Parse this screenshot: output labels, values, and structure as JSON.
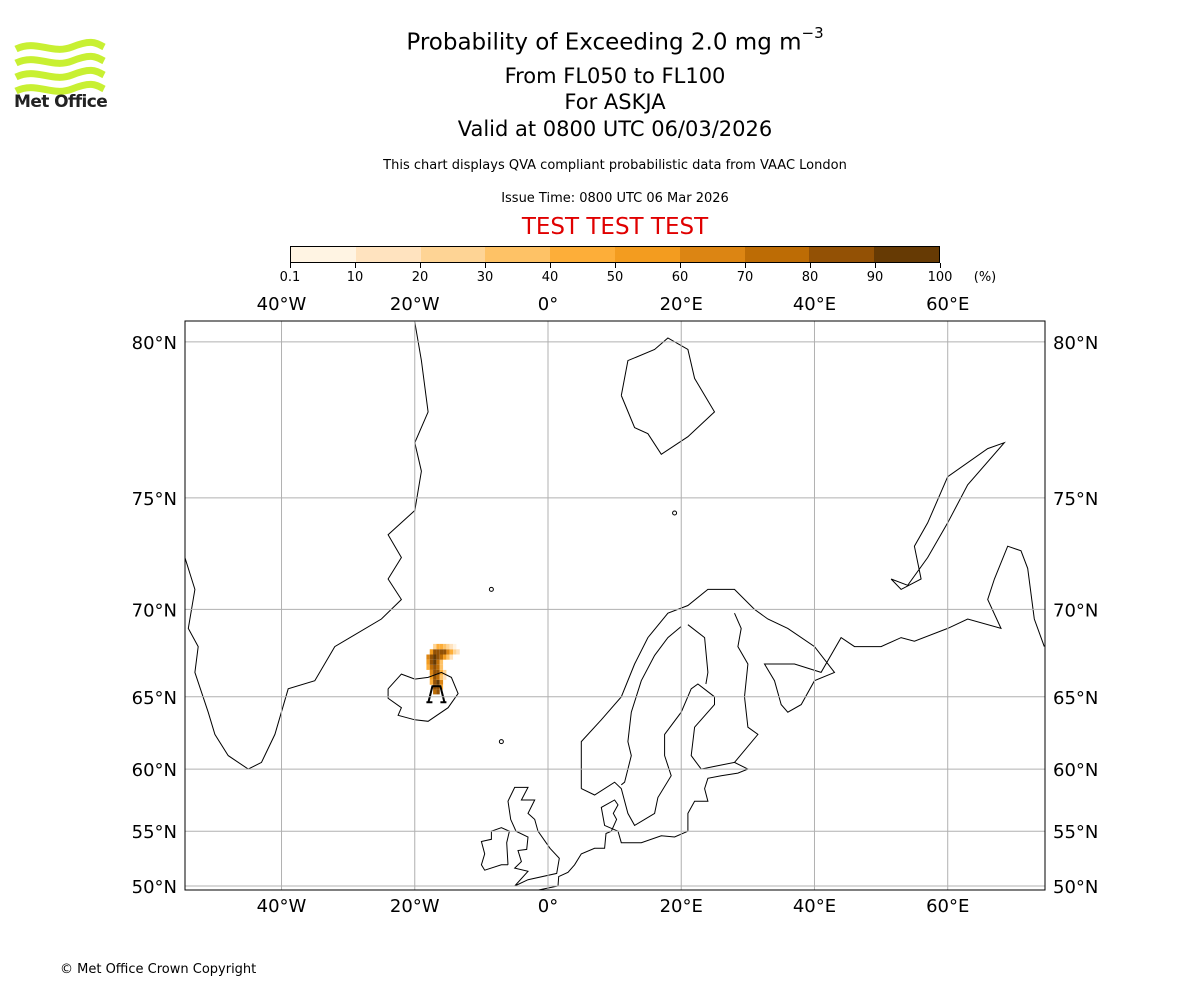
{
  "logo": {
    "text": "Met Office",
    "color": "#c8f032"
  },
  "header": {
    "title": "Probability of Exceeding 2.0 mg m",
    "title_sup": "−3",
    "levels": "From FL050 to FL100",
    "volcano": "For ASKJA",
    "valid": "Valid at 0800 UTC 06/03/2026",
    "description": "This chart displays QVA compliant probabilistic data from VAAC London",
    "issue_time": "Issue Time: 0800 UTC 06 Mar 2026",
    "test_banner": "TEST TEST TEST",
    "test_color": "#e00000"
  },
  "footer": {
    "copyright": "© Met Office Crown Copyright"
  },
  "chart_data": {
    "type": "map",
    "projection": "mercator",
    "extent": {
      "lon": [
        -54.5,
        74.5
      ],
      "lat": [
        49.8,
        80.4
      ]
    },
    "grid": true,
    "lon_ticks": [
      {
        "value": -40,
        "label": "40°W"
      },
      {
        "value": -20,
        "label": "20°W"
      },
      {
        "value": 0,
        "label": "0°"
      },
      {
        "value": 20,
        "label": "20°E"
      },
      {
        "value": 40,
        "label": "40°E"
      },
      {
        "value": 60,
        "label": "60°E"
      }
    ],
    "lat_ticks": [
      {
        "value": 80,
        "label": "80°N"
      },
      {
        "value": 75,
        "label": "75°N"
      },
      {
        "value": 70,
        "label": "70°N"
      },
      {
        "value": 65,
        "label": "65°N"
      },
      {
        "value": 60,
        "label": "60°N"
      },
      {
        "value": 55,
        "label": "55°N"
      },
      {
        "value": 50,
        "label": "50°N"
      }
    ],
    "colorbar": {
      "ticks": [
        "0.1",
        "10",
        "20",
        "30",
        "40",
        "50",
        "60",
        "70",
        "80",
        "90",
        "100"
      ],
      "unit": "(%)",
      "colors": [
        "#fff4e3",
        "#ffe3bf",
        "#fed495",
        "#fec266",
        "#fdae39",
        "#f39c1f",
        "#dc8513",
        "#bd6c05",
        "#935105",
        "#663a04"
      ]
    },
    "volcano": {
      "name": "ASKJA",
      "lon": -16.75,
      "lat": 65.03
    },
    "plume": [
      {
        "lon": -17.0,
        "lat": 65.3,
        "p": 75
      },
      {
        "lon": -16.5,
        "lat": 65.3,
        "p": 85
      },
      {
        "lon": -17.0,
        "lat": 65.6,
        "p": 85
      },
      {
        "lon": -16.5,
        "lat": 65.6,
        "p": 80
      },
      {
        "lon": -16.0,
        "lat": 65.6,
        "p": 45
      },
      {
        "lon": -17.5,
        "lat": 65.9,
        "p": 40
      },
      {
        "lon": -17.0,
        "lat": 65.9,
        "p": 85
      },
      {
        "lon": -16.5,
        "lat": 65.9,
        "p": 90
      },
      {
        "lon": -16.0,
        "lat": 65.9,
        "p": 60
      },
      {
        "lon": -17.5,
        "lat": 66.2,
        "p": 55
      },
      {
        "lon": -17.0,
        "lat": 66.2,
        "p": 85
      },
      {
        "lon": -16.5,
        "lat": 66.2,
        "p": 75
      },
      {
        "lon": -16.0,
        "lat": 66.2,
        "p": 35
      },
      {
        "lon": -15.5,
        "lat": 66.2,
        "p": 15
      },
      {
        "lon": -17.5,
        "lat": 66.5,
        "p": 65
      },
      {
        "lon": -17.0,
        "lat": 66.5,
        "p": 85
      },
      {
        "lon": -16.5,
        "lat": 66.5,
        "p": 80
      },
      {
        "lon": -16.0,
        "lat": 66.5,
        "p": 45
      },
      {
        "lon": -15.5,
        "lat": 66.5,
        "p": 20
      },
      {
        "lon": -18.0,
        "lat": 66.8,
        "p": 45
      },
      {
        "lon": -17.5,
        "lat": 66.8,
        "p": 75
      },
      {
        "lon": -17.0,
        "lat": 66.8,
        "p": 85
      },
      {
        "lon": -16.5,
        "lat": 66.8,
        "p": 75
      },
      {
        "lon": -16.0,
        "lat": 66.8,
        "p": 35
      },
      {
        "lon": -18.0,
        "lat": 67.1,
        "p": 55
      },
      {
        "lon": -17.5,
        "lat": 67.1,
        "p": 85
      },
      {
        "lon": -17.0,
        "lat": 67.1,
        "p": 90
      },
      {
        "lon": -16.5,
        "lat": 67.1,
        "p": 75
      },
      {
        "lon": -16.0,
        "lat": 67.1,
        "p": 35
      },
      {
        "lon": -18.0,
        "lat": 67.4,
        "p": 60
      },
      {
        "lon": -17.5,
        "lat": 67.4,
        "p": 85
      },
      {
        "lon": -17.0,
        "lat": 67.4,
        "p": 90
      },
      {
        "lon": -16.5,
        "lat": 67.4,
        "p": 85
      },
      {
        "lon": -16.0,
        "lat": 67.4,
        "p": 75
      },
      {
        "lon": -15.5,
        "lat": 67.4,
        "p": 55
      },
      {
        "lon": -15.0,
        "lat": 67.4,
        "p": 35
      },
      {
        "lon": -14.5,
        "lat": 67.4,
        "p": 15
      },
      {
        "lon": -17.5,
        "lat": 67.7,
        "p": 55
      },
      {
        "lon": -17.0,
        "lat": 67.7,
        "p": 80
      },
      {
        "lon": -16.5,
        "lat": 67.7,
        "p": 85
      },
      {
        "lon": -16.0,
        "lat": 67.7,
        "p": 85
      },
      {
        "lon": -15.5,
        "lat": 67.7,
        "p": 80
      },
      {
        "lon": -15.0,
        "lat": 67.7,
        "p": 65
      },
      {
        "lon": -14.5,
        "lat": 67.7,
        "p": 45
      },
      {
        "lon": -14.0,
        "lat": 67.7,
        "p": 25
      },
      {
        "lon": -13.5,
        "lat": 67.7,
        "p": 10
      },
      {
        "lon": -17.0,
        "lat": 68.0,
        "p": 25
      },
      {
        "lon": -16.5,
        "lat": 68.0,
        "p": 40
      },
      {
        "lon": -16.0,
        "lat": 68.0,
        "p": 45
      },
      {
        "lon": -15.5,
        "lat": 68.0,
        "p": 35
      },
      {
        "lon": -15.0,
        "lat": 68.0,
        "p": 25
      },
      {
        "lon": -14.5,
        "lat": 68.0,
        "p": 15
      },
      {
        "lon": -14.0,
        "lat": 68.0,
        "p": 8
      }
    ]
  }
}
